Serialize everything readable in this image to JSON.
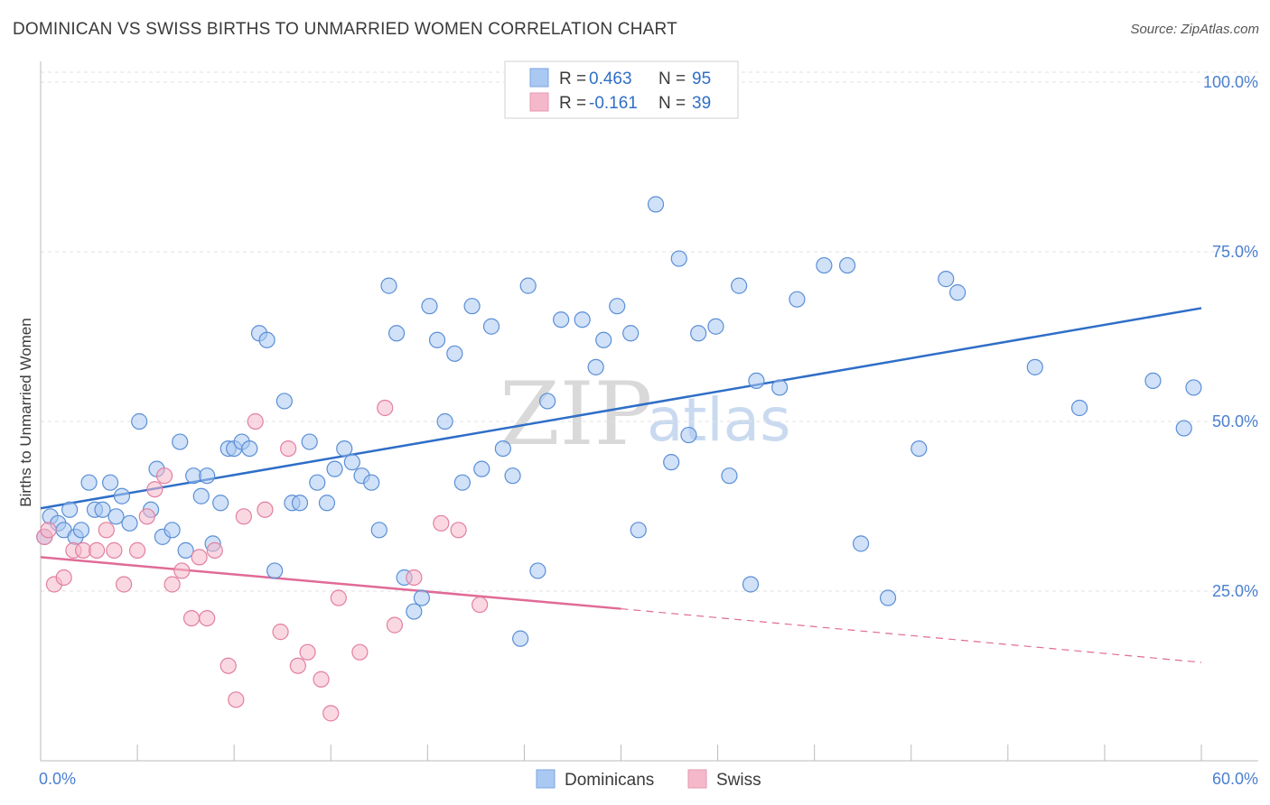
{
  "header": {
    "title": "DOMINICAN VS SWISS BIRTHS TO UNMARRIED WOMEN CORRELATION CHART",
    "source": "Source: ZipAtlas.com"
  },
  "watermark": {
    "zip": "ZIP",
    "atlas": "atlas"
  },
  "legend_box": {
    "rows": [
      {
        "r_label": "R =",
        "r_value": "0.463",
        "n_label": "N =",
        "n_value": "95",
        "color": "#a9c8f2"
      },
      {
        "r_label": "R =",
        "r_value": "-0.161",
        "n_label": "N =",
        "n_value": "39",
        "color": "#f5b8cb"
      }
    ]
  },
  "bottom_legend": [
    {
      "label": "Dominicans",
      "color": "#a9c8f2"
    },
    {
      "label": "Swiss",
      "color": "#f5b8cb"
    }
  ],
  "chart_data": {
    "type": "scatter",
    "title": "DOMINICAN VS SWISS BIRTHS TO UNMARRIED WOMEN CORRELATION CHART",
    "xlabel": "",
    "ylabel": "Births to Unmarried Women",
    "xlim": [
      0,
      60
    ],
    "ylim": [
      0,
      102
    ],
    "x_tick_labels": [
      "0.0%",
      "60.0%"
    ],
    "y_tick_values": [
      25,
      50,
      75,
      100
    ],
    "y_tick_labels": [
      "25.0%",
      "50.0%",
      "75.0%",
      "100.0%"
    ],
    "grid": true,
    "colors": {
      "dominicans": "#a9c8f2",
      "dominicans_stroke": "#5b8fd6",
      "swiss": "#f5b8cb",
      "swiss_stroke": "#e27fa0",
      "blue_line": "#2f6ec7",
      "pink_line": "#e06b96"
    },
    "series": [
      {
        "name": "Dominicans",
        "x": [
          0.2,
          0.5,
          0.9,
          1.2,
          1.5,
          1.8,
          2.1,
          2.5,
          2.8,
          3.2,
          3.6,
          3.9,
          4.2,
          4.6,
          5.1,
          5.7,
          6.0,
          6.3,
          6.8,
          7.2,
          7.5,
          7.9,
          8.3,
          8.6,
          8.9,
          9.3,
          9.7,
          10.0,
          10.4,
          10.8,
          11.3,
          11.7,
          12.1,
          12.6,
          13.0,
          13.4,
          13.9,
          14.3,
          14.8,
          15.2,
          15.7,
          16.1,
          16.6,
          17.1,
          17.5,
          18.0,
          18.4,
          18.8,
          19.3,
          19.7,
          20.1,
          20.5,
          20.9,
          21.4,
          21.8,
          22.3,
          22.8,
          23.3,
          23.9,
          24.4,
          24.8,
          25.2,
          25.7,
          26.2,
          26.9,
          28.0,
          28.7,
          29.1,
          29.8,
          30.5,
          30.9,
          31.8,
          32.6,
          33.0,
          33.5,
          34.0,
          34.9,
          35.6,
          36.1,
          36.7,
          37.0,
          38.2,
          39.1,
          40.5,
          41.7,
          42.4,
          43.8,
          45.4,
          46.8,
          47.4,
          53.7,
          59.1,
          59.6,
          51.4,
          57.5
        ],
        "y": [
          33,
          36,
          35,
          34,
          37,
          33,
          34,
          41,
          37,
          37,
          41,
          36,
          39,
          35,
          50,
          37,
          43,
          33,
          34,
          47,
          31,
          42,
          39,
          42,
          32,
          38,
          46,
          46,
          47,
          46,
          63,
          62,
          28,
          53,
          38,
          38,
          47,
          41,
          38,
          43,
          46,
          44,
          42,
          41,
          34,
          70,
          63,
          27,
          22,
          24,
          67,
          62,
          50,
          60,
          41,
          67,
          43,
          64,
          46,
          42,
          18,
          70,
          28,
          53,
          65,
          65,
          58,
          62,
          67,
          63,
          34,
          82,
          44,
          74,
          48,
          63,
          64,
          42,
          70,
          26,
          56,
          55,
          68,
          73,
          73,
          32,
          24,
          46,
          71,
          69,
          52,
          49,
          55,
          58,
          56
        ]
      },
      {
        "name": "Swiss",
        "x": [
          0.2,
          0.4,
          0.7,
          1.2,
          1.7,
          2.2,
          2.9,
          3.4,
          3.8,
          4.3,
          5.0,
          5.5,
          5.9,
          6.4,
          6.8,
          7.3,
          7.8,
          8.2,
          8.6,
          9.0,
          9.7,
          10.1,
          10.5,
          11.1,
          11.6,
          12.4,
          12.8,
          13.3,
          13.8,
          14.5,
          15.0,
          15.4,
          16.5,
          17.8,
          18.3,
          19.3,
          20.7,
          21.6,
          22.7
        ],
        "y": [
          33,
          34,
          26,
          27,
          31,
          31,
          31,
          34,
          31,
          26,
          31,
          36,
          40,
          42,
          26,
          28,
          21,
          30,
          21,
          31,
          14,
          9,
          36,
          50,
          37,
          19,
          46,
          14,
          16,
          12,
          7,
          24,
          16,
          52,
          20,
          27,
          35,
          34,
          23
        ]
      }
    ],
    "trend_lines": [
      {
        "name": "Dominicans",
        "x": [
          0,
          60
        ],
        "y": [
          37.2,
          66.7
        ]
      },
      {
        "name": "Swiss",
        "x": [
          0,
          30,
          60
        ],
        "y": [
          30.0,
          22.4,
          14.5
        ]
      }
    ]
  }
}
